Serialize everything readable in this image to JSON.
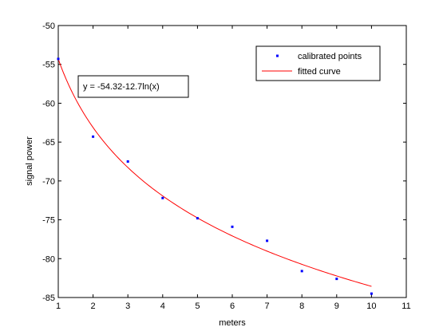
{
  "chart_data": {
    "type": "scatter",
    "xlabel": "meters",
    "ylabel": "signal power",
    "xlim": [
      1,
      11
    ],
    "ylim": [
      -85,
      -50
    ],
    "xticks": [
      1,
      2,
      3,
      4,
      5,
      6,
      7,
      8,
      9,
      10,
      11
    ],
    "yticks": [
      -50,
      -55,
      -60,
      -65,
      -70,
      -75,
      -80,
      -85
    ],
    "grid": false,
    "legend_position": "top-right",
    "annotation": "y = -54.32-12.7ln(x)",
    "colors": {
      "points": "#0000ff",
      "curve": "#ff0000"
    },
    "series": [
      {
        "name": "calibrated points",
        "kind": "scatter",
        "x": [
          1,
          2,
          3,
          4,
          5,
          6,
          7,
          8,
          9,
          10
        ],
        "y": [
          -54.3,
          -64.3,
          -67.5,
          -72.2,
          -74.8,
          -75.9,
          -77.7,
          -81.6,
          -82.6,
          -84.5
        ]
      },
      {
        "name": "fitted curve",
        "kind": "line",
        "equation": {
          "a": -54.32,
          "b": -12.7,
          "form": "a + b*ln(x)"
        },
        "x_range": [
          1,
          10
        ]
      }
    ]
  }
}
